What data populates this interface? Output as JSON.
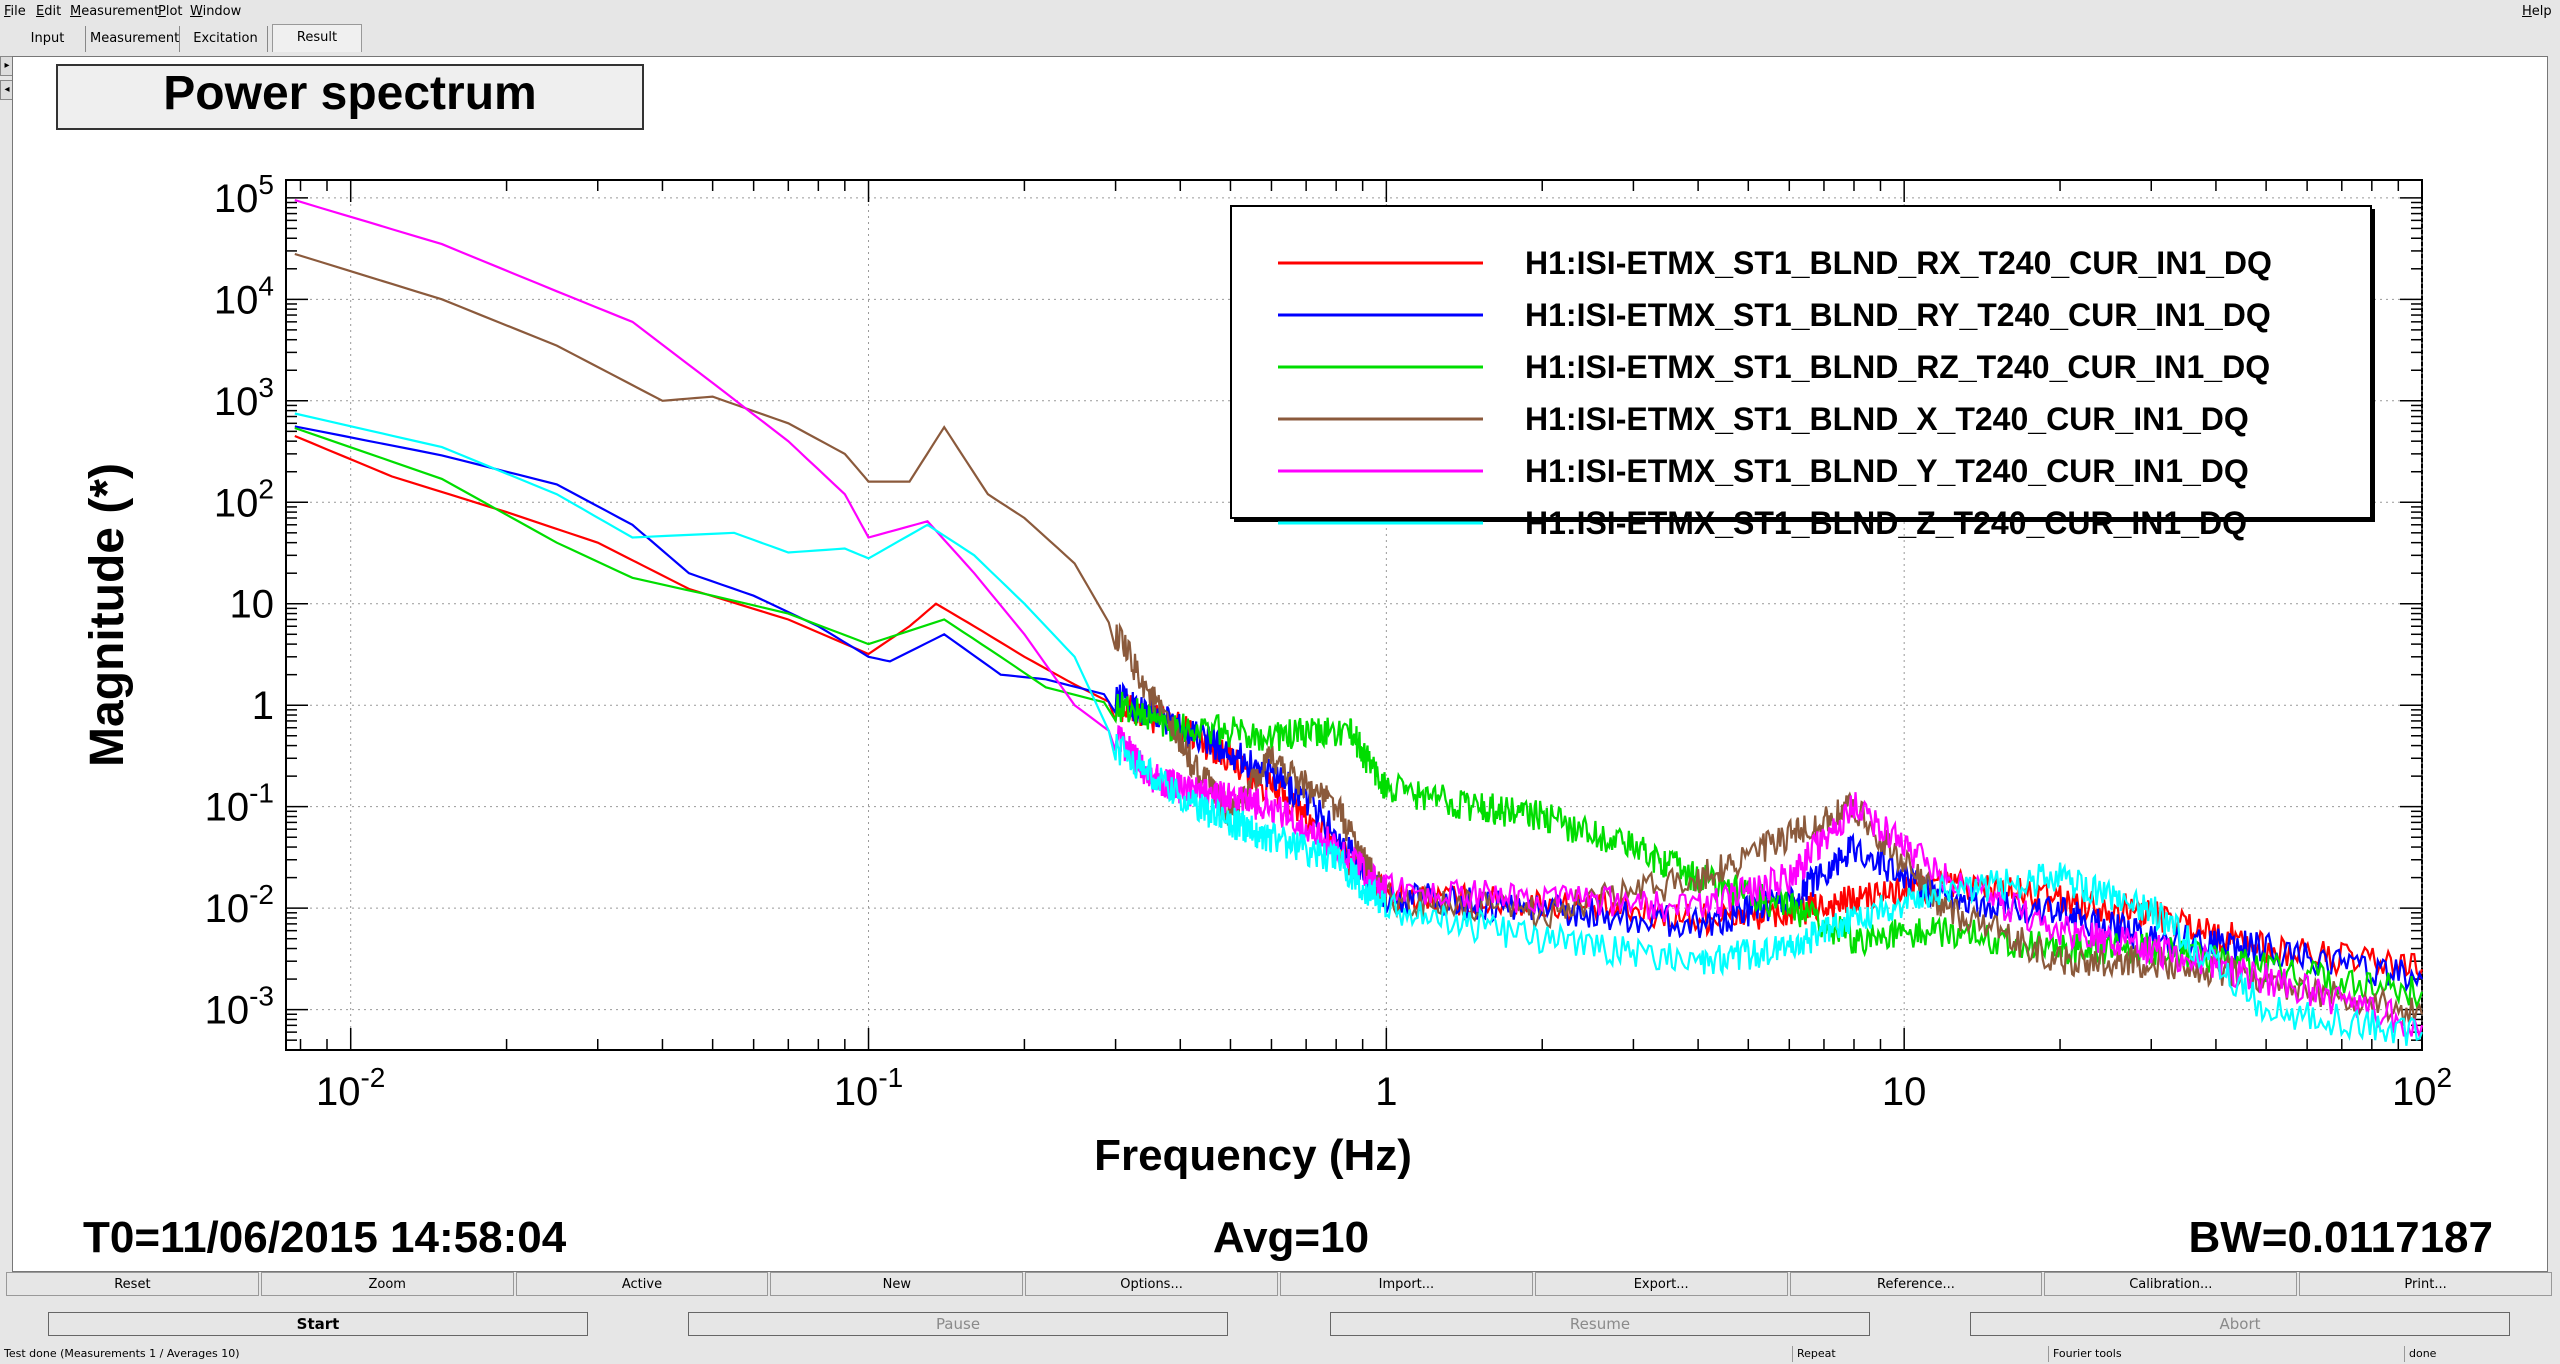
{
  "menu": {
    "file": "File",
    "edit": "Edit",
    "measurement": "Measurement",
    "plot": "Plot",
    "window": "Window",
    "help": "Help"
  },
  "tabs": [
    "Input",
    "Measurement",
    "Excitation",
    "Result"
  ],
  "active_tab": "Result",
  "plot_panel": {
    "title": "Power spectrum",
    "footer_t0": "T0=11/06/2015 14:58:04",
    "footer_avg": "Avg=10",
    "footer_bw": "BW=0.0117187"
  },
  "chart_data": {
    "type": "line",
    "title": "",
    "xlabel": "Frequency (Hz)",
    "ylabel": "Magnitude (*)",
    "xscale": "log",
    "yscale": "log",
    "xlim": [
      0.0075,
      100
    ],
    "ylim": [
      0.0004,
      150000
    ],
    "x_ticks": [
      "10^-2",
      "10^-1",
      "1",
      "10",
      "10^2"
    ],
    "y_ticks": [
      "10^5",
      "10^4",
      "10^3",
      "10^2",
      "10",
      "1",
      "10^-1",
      "10^-2",
      "10^-3"
    ],
    "grid": true,
    "legend_position": "top-right",
    "series": [
      {
        "name": "H1:ISI-ETMX_ST1_BLND_RX_T240_CUR_IN1_DQ",
        "color": "#ff0000",
        "points": [
          [
            0.0078,
            450
          ],
          [
            0.012,
            180
          ],
          [
            0.02,
            80
          ],
          [
            0.03,
            40
          ],
          [
            0.045,
            14
          ],
          [
            0.07,
            7
          ],
          [
            0.1,
            3.2
          ],
          [
            0.12,
            6
          ],
          [
            0.135,
            10
          ],
          [
            0.16,
            6
          ],
          [
            0.2,
            3
          ],
          [
            0.25,
            1.6
          ],
          [
            0.3,
            1
          ],
          [
            0.4,
            0.6
          ],
          [
            0.5,
            0.3
          ],
          [
            0.7,
            0.08
          ],
          [
            1,
            0.013
          ],
          [
            2,
            0.011
          ],
          [
            4,
            0.008
          ],
          [
            6,
            0.009
          ],
          [
            8,
            0.012
          ],
          [
            12,
            0.018
          ],
          [
            20,
            0.012
          ],
          [
            30,
            0.009
          ],
          [
            50,
            0.004
          ],
          [
            100,
            0.0025
          ]
        ]
      },
      {
        "name": "H1:ISI-ETMX_ST1_BLND_RY_T240_CUR_IN1_DQ",
        "color": "#0000ff",
        "points": [
          [
            0.0078,
            560
          ],
          [
            0.015,
            290
          ],
          [
            0.025,
            150
          ],
          [
            0.035,
            60
          ],
          [
            0.045,
            20
          ],
          [
            0.06,
            12
          ],
          [
            0.08,
            6
          ],
          [
            0.1,
            3
          ],
          [
            0.11,
            2.7
          ],
          [
            0.14,
            5
          ],
          [
            0.18,
            2
          ],
          [
            0.22,
            1.8
          ],
          [
            0.3,
            1.2
          ],
          [
            0.4,
            0.6
          ],
          [
            0.5,
            0.35
          ],
          [
            0.7,
            0.12
          ],
          [
            1,
            0.013
          ],
          [
            2,
            0.01
          ],
          [
            4,
            0.007
          ],
          [
            6,
            0.012
          ],
          [
            8,
            0.04
          ],
          [
            12,
            0.012
          ],
          [
            20,
            0.009
          ],
          [
            30,
            0.005
          ],
          [
            50,
            0.004
          ],
          [
            100,
            0.002
          ]
        ]
      },
      {
        "name": "H1:ISI-ETMX_ST1_BLND_RZ_T240_CUR_IN1_DQ",
        "color": "#00dd00",
        "points": [
          [
            0.0078,
            540
          ],
          [
            0.015,
            170
          ],
          [
            0.025,
            40
          ],
          [
            0.035,
            18
          ],
          [
            0.05,
            12
          ],
          [
            0.07,
            8
          ],
          [
            0.1,
            4
          ],
          [
            0.14,
            7
          ],
          [
            0.18,
            3
          ],
          [
            0.22,
            1.5
          ],
          [
            0.3,
            1
          ],
          [
            0.4,
            0.6
          ],
          [
            0.6,
            0.5
          ],
          [
            0.85,
            0.55
          ],
          [
            1,
            0.15
          ],
          [
            1.5,
            0.1
          ],
          [
            2,
            0.08
          ],
          [
            3,
            0.04
          ],
          [
            4,
            0.02
          ],
          [
            6,
            0.01
          ],
          [
            8,
            0.005
          ],
          [
            12,
            0.006
          ],
          [
            20,
            0.004
          ],
          [
            30,
            0.004
          ],
          [
            50,
            0.0025
          ],
          [
            100,
            0.0015
          ]
        ]
      },
      {
        "name": "H1:ISI-ETMX_ST1_BLND_X_T240_CUR_IN1_DQ",
        "color": "#8b5a3c",
        "points": [
          [
            0.0078,
            28000
          ],
          [
            0.015,
            10000
          ],
          [
            0.025,
            3500
          ],
          [
            0.04,
            1000
          ],
          [
            0.05,
            1100
          ],
          [
            0.07,
            600
          ],
          [
            0.09,
            300
          ],
          [
            0.1,
            160
          ],
          [
            0.12,
            160
          ],
          [
            0.14,
            550
          ],
          [
            0.17,
            120
          ],
          [
            0.2,
            70
          ],
          [
            0.25,
            25
          ],
          [
            0.3,
            5
          ],
          [
            0.4,
            0.4
          ],
          [
            0.5,
            0.08
          ],
          [
            0.6,
            0.3
          ],
          [
            0.8,
            0.1
          ],
          [
            1,
            0.012
          ],
          [
            2,
            0.009
          ],
          [
            4,
            0.02
          ],
          [
            6,
            0.05
          ],
          [
            8,
            0.1
          ],
          [
            12,
            0.01
          ],
          [
            20,
            0.003
          ],
          [
            30,
            0.003
          ],
          [
            50,
            0.002
          ],
          [
            100,
            0.0009
          ]
        ]
      },
      {
        "name": "H1:ISI-ETMX_ST1_BLND_Y_T240_CUR_IN1_DQ",
        "color": "#ff00ff",
        "points": [
          [
            0.0078,
            95000
          ],
          [
            0.015,
            35000
          ],
          [
            0.025,
            12000
          ],
          [
            0.035,
            6000
          ],
          [
            0.05,
            1500
          ],
          [
            0.07,
            400
          ],
          [
            0.09,
            120
          ],
          [
            0.1,
            45
          ],
          [
            0.13,
            65
          ],
          [
            0.16,
            20
          ],
          [
            0.2,
            5
          ],
          [
            0.25,
            1
          ],
          [
            0.3,
            0.5
          ],
          [
            0.35,
            0.2
          ],
          [
            0.4,
            0.15
          ],
          [
            0.5,
            0.12
          ],
          [
            0.6,
            0.1
          ],
          [
            0.8,
            0.04
          ],
          [
            1,
            0.015
          ],
          [
            2,
            0.012
          ],
          [
            4,
            0.01
          ],
          [
            6,
            0.02
          ],
          [
            8,
            0.1
          ],
          [
            12,
            0.02
          ],
          [
            20,
            0.006
          ],
          [
            30,
            0.004
          ],
          [
            50,
            0.002
          ],
          [
            100,
            0.0007
          ]
        ]
      },
      {
        "name": "H1:ISI-ETMX_ST1_BLND_Z_T240_CUR_IN1_DQ",
        "color": "#00ffff",
        "points": [
          [
            0.0078,
            750
          ],
          [
            0.015,
            350
          ],
          [
            0.025,
            120
          ],
          [
            0.035,
            45
          ],
          [
            0.055,
            50
          ],
          [
            0.07,
            32
          ],
          [
            0.09,
            35
          ],
          [
            0.1,
            28
          ],
          [
            0.13,
            60
          ],
          [
            0.16,
            30
          ],
          [
            0.2,
            10
          ],
          [
            0.25,
            3
          ],
          [
            0.3,
            0.4
          ],
          [
            0.4,
            0.12
          ],
          [
            0.5,
            0.07
          ],
          [
            0.6,
            0.05
          ],
          [
            0.8,
            0.03
          ],
          [
            1,
            0.01
          ],
          [
            2,
            0.005
          ],
          [
            4,
            0.003
          ],
          [
            6,
            0.004
          ],
          [
            8,
            0.008
          ],
          [
            12,
            0.015
          ],
          [
            20,
            0.02
          ],
          [
            30,
            0.01
          ],
          [
            50,
            0.001
          ],
          [
            100,
            0.0006
          ]
        ]
      }
    ]
  },
  "toolbar_row1": [
    "Reset",
    "Zoom",
    "Active",
    "New",
    "Options...",
    "Import...",
    "Export...",
    "Reference...",
    "Calibration...",
    "Print..."
  ],
  "toolbar_row2": [
    {
      "label": "Start",
      "enabled": true
    },
    {
      "label": "Pause",
      "enabled": false
    },
    {
      "label": "Resume",
      "enabled": false
    },
    {
      "label": "Abort",
      "enabled": false
    }
  ],
  "status": {
    "message": "Test done (Measurements 1 / Averages 10)",
    "repeat": "Repeat",
    "fourier": "Fourier tools",
    "state": "done"
  }
}
